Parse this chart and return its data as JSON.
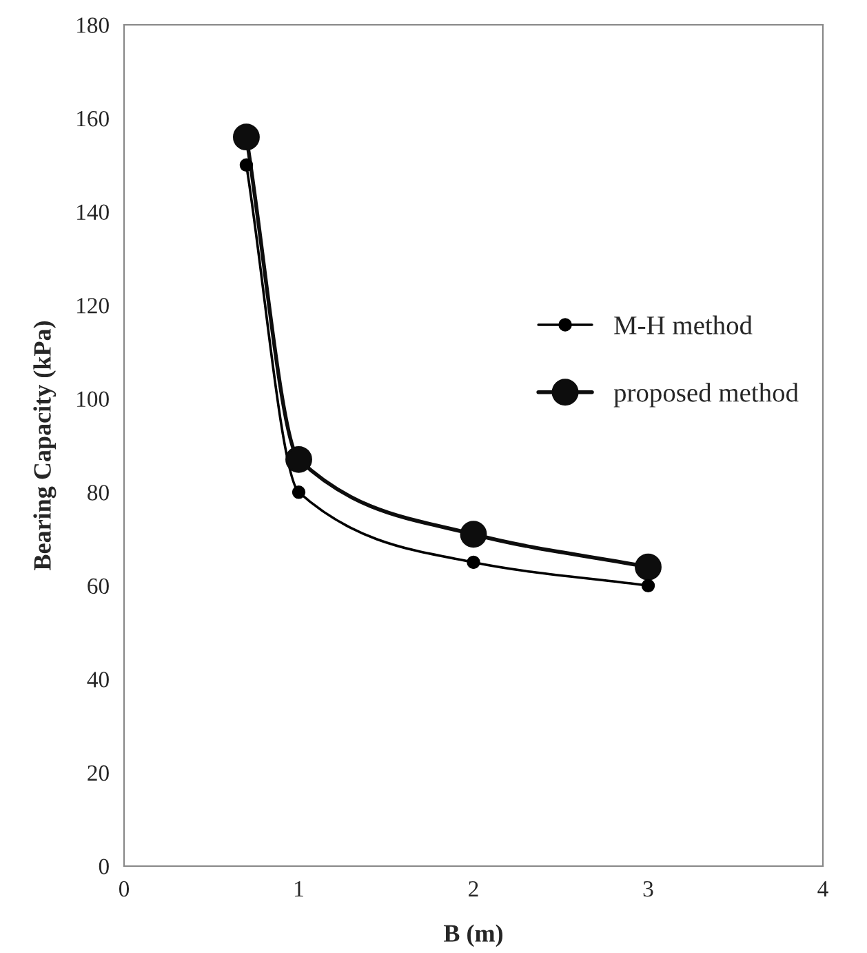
{
  "chart_data": {
    "type": "line",
    "xlabel": "B (m)",
    "ylabel": "Bearing Capacity (kPa)",
    "x": [
      0.7,
      1,
      2,
      3
    ],
    "series": [
      {
        "name": "M-H method",
        "color": "#000000",
        "values": [
          150,
          80,
          65,
          60
        ]
      },
      {
        "name": "proposed method",
        "color": "#0d0d0d",
        "values": [
          156,
          87,
          71,
          64
        ]
      }
    ],
    "xlim": [
      0,
      4
    ],
    "xticks": [
      0,
      1,
      2,
      3,
      4
    ],
    "ylim": [
      0,
      180
    ],
    "yticks": [
      0,
      20,
      40,
      60,
      80,
      100,
      120,
      140,
      160,
      180
    ],
    "grid": false,
    "legend": "right",
    "marker": "circle",
    "line_style": "solid"
  }
}
